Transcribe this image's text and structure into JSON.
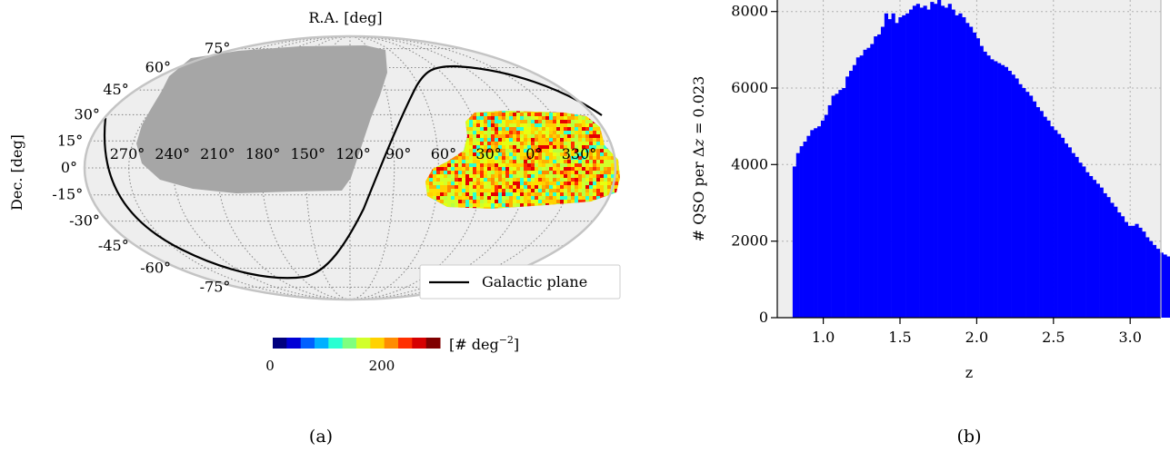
{
  "panel_a": {
    "caption": "(a)",
    "xlabel": "R.A. [deg]",
    "ylabel": "Dec. [deg]",
    "ra_labels": [
      "270°",
      "240°",
      "210°",
      "180°",
      "150°",
      "120°",
      "90°",
      "60°",
      "30°",
      "0°",
      "330°"
    ],
    "dec_labels_left": [
      "-75°",
      "-60°",
      "-45°",
      "-30°",
      "-15°",
      "0°",
      "15°",
      "30°",
      "45°",
      "60°",
      "75°"
    ],
    "legend_label": "Galactic plane",
    "colorbar": {
      "label": "[# deg",
      "label_sup": "−2",
      "label_close": "]",
      "ticks": [
        "0",
        "200"
      ],
      "colors": [
        "#00007f",
        "#0000d6",
        "#0060ff",
        "#00b0ff",
        "#2affd2",
        "#7fff7f",
        "#d2ff2a",
        "#ffd200",
        "#ff8c00",
        "#ff3000",
        "#d60000",
        "#7f0000"
      ]
    },
    "colors": {
      "background": "#eeeeee",
      "footprint": "#a6a6a6",
      "galactic_plane": "#000000"
    }
  },
  "panel_b": {
    "caption": "(b)",
    "xlabel": "z",
    "ylabel_pre": "# QSO per Δ",
    "ylabel_var": "z",
    "ylabel_post": " = 0.023",
    "x_ticks": [
      "1.0",
      "1.5",
      "2.0",
      "2.5",
      "3.0"
    ],
    "y_ticks": [
      "0",
      "2000",
      "4000",
      "6000",
      "8000"
    ],
    "colors": {
      "bar": "#0000ff",
      "axes_bg": "#eeeeee",
      "grid": "#b0b0b0"
    }
  },
  "chart_data": [
    {
      "type": "heatmap",
      "title": "",
      "xlabel": "R.A. [deg]",
      "ylabel": "Dec. [deg]",
      "projection": "Mollweide",
      "ra_ticks": [
        270,
        240,
        210,
        180,
        150,
        120,
        90,
        60,
        30,
        0,
        330
      ],
      "dec_ticks": [
        -75,
        -60,
        -45,
        -30,
        -15,
        0,
        15,
        30,
        45,
        60,
        75
      ],
      "series": [
        {
          "name": "Galactic plane"
        }
      ],
      "colorbar": {
        "label": "[# deg^-2]",
        "range": [
          0,
          250
        ],
        "ticks": [
          0,
          200
        ]
      },
      "legend_position": "lower-right",
      "grid": true
    },
    {
      "type": "bar",
      "title": "",
      "xlabel": "z",
      "ylabel": "# QSO per Δz = 0.023",
      "xlim": [
        0.7,
        3.2
      ],
      "ylim": [
        0,
        8300
      ],
      "bin_width": 0.023,
      "x_start": 0.8,
      "grid": true,
      "values": [
        3950,
        4300,
        4480,
        4600,
        4750,
        4900,
        4950,
        5000,
        5150,
        5300,
        5550,
        5800,
        5850,
        5950,
        6000,
        6300,
        6450,
        6600,
        6800,
        6850,
        7000,
        7050,
        7150,
        7350,
        7400,
        7600,
        7950,
        7800,
        7950,
        7700,
        7850,
        7900,
        7950,
        8050,
        8150,
        8200,
        8100,
        8150,
        8050,
        8250,
        8200,
        8300,
        8150,
        8100,
        8200,
        8050,
        7900,
        7950,
        7850,
        7700,
        7600,
        7450,
        7300,
        7100,
        6950,
        6850,
        6750,
        6700,
        6650,
        6600,
        6550,
        6450,
        6350,
        6250,
        6100,
        6000,
        5900,
        5800,
        5650,
        5500,
        5400,
        5250,
        5150,
        5000,
        4900,
        4800,
        4700,
        4550,
        4450,
        4300,
        4200,
        4050,
        3950,
        3800,
        3700,
        3600,
        3500,
        3400,
        3250,
        3150,
        3000,
        2900,
        2750,
        2650,
        2500,
        2400,
        2400,
        2450,
        2350,
        2250,
        2100,
        2000,
        1900,
        1800,
        1700,
        1650,
        1600,
        1550,
        1450,
        1400,
        1350,
        1300
      ]
    }
  ]
}
